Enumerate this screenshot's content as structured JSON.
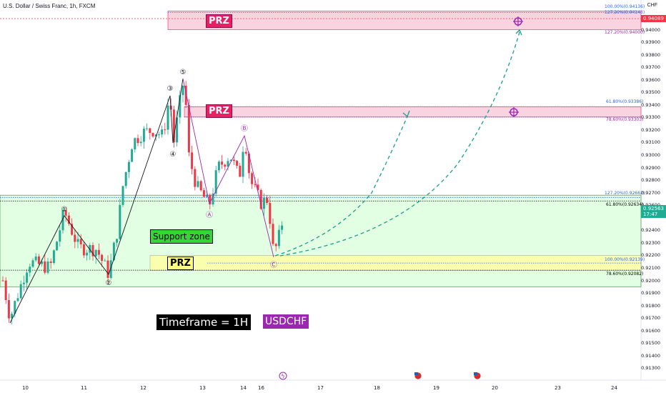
{
  "header": {
    "title": "U.S. Dollar / Swiss Franc, 1h, FXCM",
    "currency": "CHF"
  },
  "labels": {
    "prz_top": "PRZ",
    "prz_mid": "PRZ",
    "prz_low": "PRZ",
    "support_zone": "Support zone",
    "timeframe": "Timeframe = 1H",
    "symbol": "USDCHF"
  },
  "fib_levels": [
    {
      "text": "100.00%(0.94136)",
      "price": 0.94136,
      "color": "#2962ff"
    },
    {
      "text": "127.20%(0.94143)",
      "price": 0.94143,
      "color": "#2962ff"
    },
    {
      "text": "127.20%(0.94000)",
      "price": 0.94,
      "color": "#9c27b0"
    },
    {
      "text": "61.80%(0.93386)",
      "price": 0.93386,
      "color": "#2962ff"
    },
    {
      "text": "78.60%(0.93303)",
      "price": 0.93303,
      "color": "#9c27b0"
    },
    {
      "text": "127.20%(0.92662)",
      "price": 0.92662,
      "color": "#2962ff"
    },
    {
      "text": "61.80%(0.92634)",
      "price": 0.92634,
      "color": "#000000"
    },
    {
      "text": "100.00%(0.92139)",
      "price": 0.92139,
      "color": "#2962ff"
    },
    {
      "text": "78.60%(0.92082)",
      "price": 0.92082,
      "color": "#000000"
    }
  ],
  "price_boxes": [
    {
      "price": "0.94089",
      "sub": "",
      "color": "#f23645"
    },
    {
      "price": "0.92563",
      "sub": "17:47",
      "color": "#22ab94"
    }
  ],
  "wave_labels": [
    "①",
    "②",
    "③",
    "④",
    "⑤",
    "Ⓐ",
    "Ⓑ",
    "Ⓒ"
  ],
  "icons": [
    "lightning-icon",
    "us-flag-icon",
    "us-flag-icon",
    "target-icon",
    "target-icon"
  ],
  "chart_data": {
    "type": "candlestick",
    "y_axis": {
      "ylim": [
        0.9128,
        0.9418
      ],
      "ticks": [
        "0.94000",
        "0.93900",
        "0.93800",
        "0.93700",
        "0.93600",
        "0.93500",
        "0.93400",
        "0.93300",
        "0.93200",
        "0.93100",
        "0.93000",
        "0.92900",
        "0.92800",
        "0.92700",
        "0.92600",
        "0.92400",
        "0.92300",
        "0.92200",
        "0.92100",
        "0.92000",
        "0.91900",
        "0.91800",
        "0.91700",
        "0.91600",
        "0.91500",
        "0.91400",
        "0.91300"
      ]
    },
    "x_axis": {
      "ticks": [
        "10",
        "11",
        "12",
        "13",
        "14",
        "16",
        "17",
        "18",
        "19",
        "20",
        "23",
        "24"
      ]
    },
    "last_price": 0.92563,
    "zones": [
      {
        "name": "PRZ",
        "from": 0.94,
        "to": 0.94143
      },
      {
        "name": "PRZ",
        "from": 0.93303,
        "to": 0.93386
      },
      {
        "name": "Support zone",
        "from": 0.9195,
        "to": 0.9268
      },
      {
        "name": "PRZ",
        "from": 0.92082,
        "to": 0.922
      }
    ],
    "wave_points": [
      {
        "label": "①",
        "value": 0.925
      },
      {
        "label": "②",
        "value": 0.9205
      },
      {
        "label": "③",
        "value": 0.935
      },
      {
        "label": "④",
        "value": 0.9306
      },
      {
        "label": "⑤",
        "value": 0.9362
      },
      {
        "label": "Ⓐ",
        "value": 0.926
      },
      {
        "label": "Ⓑ",
        "value": 0.9317
      },
      {
        "label": "Ⓒ",
        "value": 0.9219
      }
    ],
    "projected_targets": [
      0.933,
      0.94
    ]
  }
}
